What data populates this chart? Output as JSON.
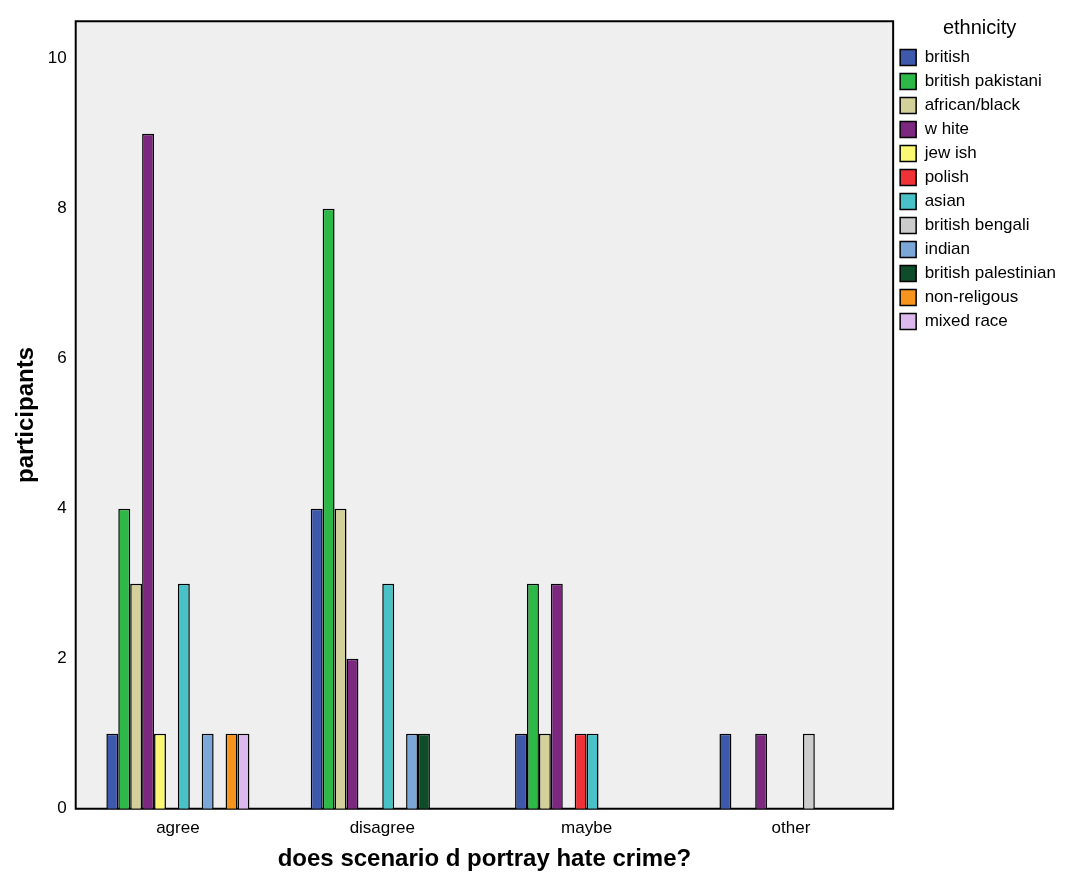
{
  "chart_data": {
    "type": "bar",
    "xlabel": "does scenario d portray hate crime?",
    "ylabel": "participants",
    "legend_title": "ethnicity",
    "legend": "top right",
    "grid": false,
    "ylim": [
      0,
      10.5
    ],
    "yticks": [
      0,
      2,
      4,
      6,
      8,
      10
    ],
    "categories": [
      "agree",
      "disagree",
      "maybe",
      "other"
    ],
    "series": [
      {
        "name": "british",
        "color": "#3e58ac",
        "values": [
          1,
          4,
          1,
          1
        ]
      },
      {
        "name": "british pakistani",
        "color": "#2eb848",
        "values": [
          4,
          8,
          3,
          null
        ]
      },
      {
        "name": "african/black",
        "color": "#d4d09a",
        "values": [
          3,
          4,
          1,
          null
        ]
      },
      {
        "name": "w hite",
        "color": "#7b287e",
        "values": [
          9,
          2,
          3,
          1
        ]
      },
      {
        "name": "jew ish",
        "color": "#fbf873",
        "values": [
          1,
          null,
          null,
          null
        ]
      },
      {
        "name": "polish",
        "color": "#ee3237",
        "values": [
          null,
          null,
          1,
          null
        ]
      },
      {
        "name": "asian",
        "color": "#48c1c7",
        "values": [
          3,
          3,
          1,
          null
        ]
      },
      {
        "name": "british bengali",
        "color": "#cccccc",
        "values": [
          null,
          null,
          null,
          1
        ]
      },
      {
        "name": "indian",
        "color": "#7ba7d8",
        "values": [
          1,
          1,
          null,
          null
        ]
      },
      {
        "name": "british palestinian",
        "color": "#0f4d2a",
        "values": [
          null,
          1,
          null,
          null
        ]
      },
      {
        "name": "non-religous",
        "color": "#f7941d",
        "values": [
          1,
          null,
          null,
          null
        ]
      },
      {
        "name": "mixed race",
        "color": "#dcb8ee",
        "values": [
          1,
          null,
          null,
          null
        ]
      }
    ]
  }
}
